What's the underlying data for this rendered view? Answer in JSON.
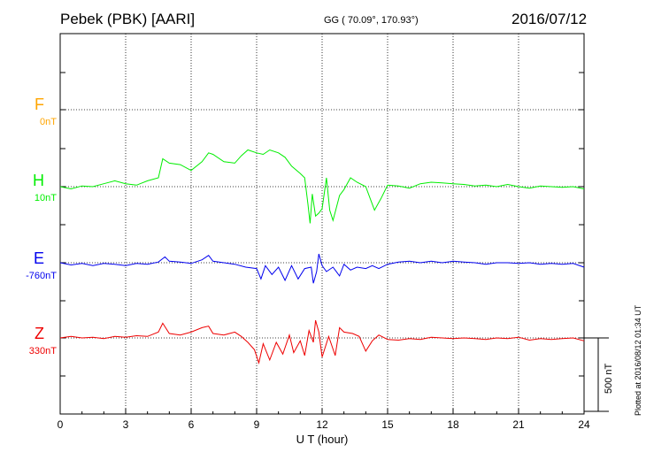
{
  "header": {
    "title": "Pebek (PBK)  [AARI]",
    "coords": "GG ( 70.09°, 170.93°)",
    "date": "2016/07/12"
  },
  "plotted_note": "Plotted at 2016/08/12 01:34  UT",
  "scale_label": "500 nT",
  "chart_data": {
    "type": "line",
    "xlabel": "U T (hour)",
    "xlim": [
      0,
      24
    ],
    "xticks": [
      "0",
      "3",
      "6",
      "9",
      "12",
      "15",
      "18",
      "21",
      "24"
    ],
    "grid": true,
    "scale_bar_nT": 500,
    "series": [
      {
        "name": "F",
        "baseline": "0nT",
        "color": "#ffa500",
        "points": []
      },
      {
        "name": "H",
        "baseline": "10nT",
        "color": "#00ee00",
        "points": [
          [
            0,
            0
          ],
          [
            0.5,
            -15
          ],
          [
            1,
            5
          ],
          [
            1.5,
            0
          ],
          [
            2,
            20
          ],
          [
            2.5,
            40
          ],
          [
            3,
            20
          ],
          [
            3.5,
            10
          ],
          [
            4,
            40
          ],
          [
            4.5,
            60
          ],
          [
            4.7,
            190
          ],
          [
            5,
            160
          ],
          [
            5.5,
            150
          ],
          [
            6,
            110
          ],
          [
            6.5,
            170
          ],
          [
            6.8,
            230
          ],
          [
            7,
            220
          ],
          [
            7.5,
            170
          ],
          [
            8,
            160
          ],
          [
            8.3,
            210
          ],
          [
            8.6,
            250
          ],
          [
            9,
            230
          ],
          [
            9.3,
            220
          ],
          [
            9.6,
            250
          ],
          [
            10,
            230
          ],
          [
            10.3,
            200
          ],
          [
            10.6,
            140
          ],
          [
            11,
            90
          ],
          [
            11.2,
            60
          ],
          [
            11.35,
            -120
          ],
          [
            11.45,
            -250
          ],
          [
            11.55,
            -50
          ],
          [
            11.7,
            -200
          ],
          [
            11.85,
            -180
          ],
          [
            12,
            -150
          ],
          [
            12.2,
            60
          ],
          [
            12.35,
            -160
          ],
          [
            12.5,
            -230
          ],
          [
            12.8,
            -60
          ],
          [
            13,
            -20
          ],
          [
            13.3,
            60
          ],
          [
            13.6,
            30
          ],
          [
            14,
            0
          ],
          [
            14.4,
            -160
          ],
          [
            14.7,
            -80
          ],
          [
            15,
            10
          ],
          [
            15.5,
            5
          ],
          [
            16,
            -10
          ],
          [
            16.5,
            20
          ],
          [
            17,
            30
          ],
          [
            17.5,
            25
          ],
          [
            18,
            20
          ],
          [
            18.5,
            15
          ],
          [
            19,
            5
          ],
          [
            19.5,
            10
          ],
          [
            20,
            0
          ],
          [
            20.5,
            15
          ],
          [
            21,
            0
          ],
          [
            21.5,
            -10
          ],
          [
            22,
            5
          ],
          [
            22.5,
            0
          ],
          [
            23,
            -5
          ],
          [
            23.5,
            0
          ],
          [
            24,
            -15
          ]
        ]
      },
      {
        "name": "E",
        "baseline": "-760nT",
        "color": "#0000ee",
        "points": [
          [
            0,
            0
          ],
          [
            0.5,
            -15
          ],
          [
            1,
            -5
          ],
          [
            1.5,
            -20
          ],
          [
            2,
            -5
          ],
          [
            2.5,
            -10
          ],
          [
            3,
            -20
          ],
          [
            3.5,
            -5
          ],
          [
            4,
            -10
          ],
          [
            4.5,
            5
          ],
          [
            4.8,
            40
          ],
          [
            5,
            10
          ],
          [
            5.5,
            5
          ],
          [
            6,
            -5
          ],
          [
            6.5,
            20
          ],
          [
            6.8,
            50
          ],
          [
            7,
            10
          ],
          [
            7.5,
            0
          ],
          [
            8,
            -10
          ],
          [
            8.5,
            -30
          ],
          [
            9,
            -40
          ],
          [
            9.2,
            -110
          ],
          [
            9.4,
            -20
          ],
          [
            9.7,
            -80
          ],
          [
            10,
            -30
          ],
          [
            10.3,
            -120
          ],
          [
            10.6,
            -20
          ],
          [
            10.9,
            -110
          ],
          [
            11.2,
            -40
          ],
          [
            11.5,
            -30
          ],
          [
            11.6,
            -140
          ],
          [
            11.75,
            -60
          ],
          [
            11.85,
            60
          ],
          [
            12,
            -20
          ],
          [
            12.2,
            -60
          ],
          [
            12.5,
            -30
          ],
          [
            12.8,
            -90
          ],
          [
            13,
            -10
          ],
          [
            13.3,
            -50
          ],
          [
            13.6,
            -30
          ],
          [
            14,
            -40
          ],
          [
            14.3,
            -20
          ],
          [
            14.6,
            -40
          ],
          [
            15,
            -10
          ],
          [
            15.5,
            5
          ],
          [
            16,
            10
          ],
          [
            16.5,
            0
          ],
          [
            17,
            10
          ],
          [
            17.5,
            0
          ],
          [
            18,
            10
          ],
          [
            18.5,
            5
          ],
          [
            19,
            0
          ],
          [
            19.5,
            -10
          ],
          [
            20,
            0
          ],
          [
            20.5,
            0
          ],
          [
            21,
            -5
          ],
          [
            21.5,
            0
          ],
          [
            22,
            -10
          ],
          [
            22.5,
            -5
          ],
          [
            23,
            -10
          ],
          [
            23.5,
            -5
          ],
          [
            24,
            -30
          ]
        ]
      },
      {
        "name": "Z",
        "baseline": "330nT",
        "color": "#ee0000",
        "points": [
          [
            0,
            0
          ],
          [
            0.5,
            10
          ],
          [
            1,
            0
          ],
          [
            1.5,
            5
          ],
          [
            2,
            -5
          ],
          [
            2.5,
            10
          ],
          [
            3,
            5
          ],
          [
            3.5,
            15
          ],
          [
            4,
            10
          ],
          [
            4.5,
            40
          ],
          [
            4.7,
            100
          ],
          [
            5,
            30
          ],
          [
            5.5,
            20
          ],
          [
            6,
            40
          ],
          [
            6.5,
            70
          ],
          [
            6.8,
            80
          ],
          [
            7,
            30
          ],
          [
            7.5,
            20
          ],
          [
            8,
            40
          ],
          [
            8.3,
            10
          ],
          [
            8.6,
            -30
          ],
          [
            8.9,
            -80
          ],
          [
            9.1,
            -170
          ],
          [
            9.3,
            -40
          ],
          [
            9.6,
            -150
          ],
          [
            9.9,
            -30
          ],
          [
            10.2,
            -110
          ],
          [
            10.5,
            20
          ],
          [
            10.7,
            -100
          ],
          [
            11,
            -20
          ],
          [
            11.2,
            -120
          ],
          [
            11.4,
            50
          ],
          [
            11.6,
            -30
          ],
          [
            11.7,
            120
          ],
          [
            11.85,
            40
          ],
          [
            12,
            -130
          ],
          [
            12.3,
            10
          ],
          [
            12.6,
            -120
          ],
          [
            12.8,
            70
          ],
          [
            13,
            40
          ],
          [
            13.4,
            30
          ],
          [
            13.7,
            10
          ],
          [
            14,
            -90
          ],
          [
            14.3,
            -20
          ],
          [
            14.6,
            20
          ],
          [
            15,
            -10
          ],
          [
            15.5,
            -15
          ],
          [
            16,
            -5
          ],
          [
            16.5,
            -10
          ],
          [
            17,
            5
          ],
          [
            17.5,
            0
          ],
          [
            18,
            -5
          ],
          [
            18.5,
            0
          ],
          [
            19,
            -5
          ],
          [
            19.5,
            -10
          ],
          [
            20,
            0
          ],
          [
            20.5,
            -5
          ],
          [
            21,
            5
          ],
          [
            21.5,
            -15
          ],
          [
            22,
            -5
          ],
          [
            22.5,
            -10
          ],
          [
            23,
            -5
          ],
          [
            23.5,
            0
          ],
          [
            24,
            -20
          ]
        ]
      }
    ]
  }
}
